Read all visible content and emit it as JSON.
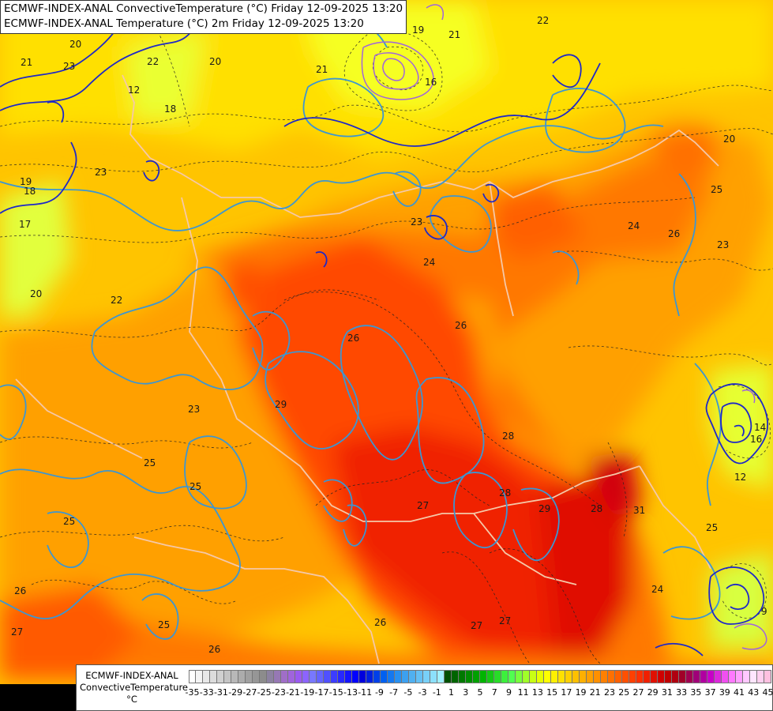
{
  "header": {
    "line1": "ECMWF-INDEX-ANAL ConvectiveTemperature (°C) Friday 12-09-2025 13:20",
    "line2": "ECMWF-INDEX-ANAL Temperature (°C) 2m Friday 12-09-2025 13:20"
  },
  "legend": {
    "line1": "ECMWF-INDEX-ANAL",
    "line2": "ConvectiveTemperature",
    "unit": "°C",
    "tick_labels": [
      "-35",
      "-33",
      "-31",
      "-29",
      "-27",
      "-25",
      "-23",
      "-21",
      "-19",
      "-17",
      "-15",
      "-13",
      "-11",
      "-9",
      "-7",
      "-5",
      "-3",
      "-1",
      "1",
      "3",
      "5",
      "7",
      "9",
      "11",
      "13",
      "15",
      "17",
      "19",
      "21",
      "23",
      "25",
      "27",
      "29",
      "31",
      "33",
      "35",
      "37",
      "39",
      "41",
      "43",
      "45"
    ],
    "colors": [
      "#ffffff",
      "#f4f4f4",
      "#e8e8e8",
      "#dcdcdc",
      "#d0d0d0",
      "#c4c4c4",
      "#b8b8b8",
      "#acacac",
      "#a0a0a0",
      "#969696",
      "#8c8c8c",
      "#8c82a0",
      "#9678b4",
      "#a06ec8",
      "#a064dc",
      "#9a5af0",
      "#8c64ff",
      "#7878ff",
      "#6464ff",
      "#5050ff",
      "#3c3cff",
      "#2828ff",
      "#1414ff",
      "#0000ff",
      "#0000dc",
      "#0020e0",
      "#0040e8",
      "#0060f0",
      "#1478f0",
      "#2890f0",
      "#3ca0f0",
      "#50b0f0",
      "#64c0f4",
      "#78d0f8",
      "#8ce0fc",
      "#a0f0ff",
      "#005000",
      "#006400",
      "#007800",
      "#008c00",
      "#00a000",
      "#00b400",
      "#14c814",
      "#28dc28",
      "#3cf03c",
      "#50ff50",
      "#78ff3c",
      "#a0ff28",
      "#c8ff14",
      "#e6ff00",
      "#ffff00",
      "#fff000",
      "#ffe000",
      "#ffd000",
      "#ffc000",
      "#ffb000",
      "#ffa000",
      "#ff9000",
      "#ff8000",
      "#ff7000",
      "#ff6000",
      "#ff5000",
      "#ff4000",
      "#ff3000",
      "#f02000",
      "#e01000",
      "#d00000",
      "#c00000",
      "#b00010",
      "#a00028",
      "#a00050",
      "#a00078",
      "#b000a0",
      "#c800c8",
      "#dc28dc",
      "#f050f0",
      "#ff78ff",
      "#ffa0ff",
      "#ffc8ff",
      "#ffe6ff",
      "#ffd0f0",
      "#ffc0e0"
    ]
  },
  "map": {
    "contour_labels": [
      {
        "text": "21"
      },
      {
        "text": "23"
      },
      {
        "text": "20"
      },
      {
        "text": "19"
      },
      {
        "text": "16"
      },
      {
        "text": "22"
      },
      {
        "text": "20"
      },
      {
        "text": "21"
      },
      {
        "text": "18"
      },
      {
        "text": "23"
      },
      {
        "text": "22"
      },
      {
        "text": "20"
      },
      {
        "text": "23"
      },
      {
        "text": "24"
      },
      {
        "text": "25"
      },
      {
        "text": "26"
      },
      {
        "text": "24"
      },
      {
        "text": "23"
      },
      {
        "text": "25"
      },
      {
        "text": "26"
      },
      {
        "text": "26"
      },
      {
        "text": "28"
      },
      {
        "text": "29"
      },
      {
        "text": "27"
      },
      {
        "text": "28"
      },
      {
        "text": "29"
      },
      {
        "text": "31"
      },
      {
        "text": "24"
      },
      {
        "text": "26"
      },
      {
        "text": "25"
      },
      {
        "text": "25"
      },
      {
        "text": "27"
      },
      {
        "text": "26"
      },
      {
        "text": "25"
      },
      {
        "text": "26"
      },
      {
        "text": "27"
      },
      {
        "text": "27"
      },
      {
        "text": "28"
      },
      {
        "text": "21"
      },
      {
        "text": "22"
      },
      {
        "text": "20"
      },
      {
        "text": "23"
      },
      {
        "text": "19"
      },
      {
        "text": "17"
      },
      {
        "text": "18"
      },
      {
        "text": "12"
      },
      {
        "text": "14"
      },
      {
        "text": "25"
      },
      {
        "text": "16"
      },
      {
        "text": "12"
      },
      {
        "text": "9"
      }
    ]
  }
}
